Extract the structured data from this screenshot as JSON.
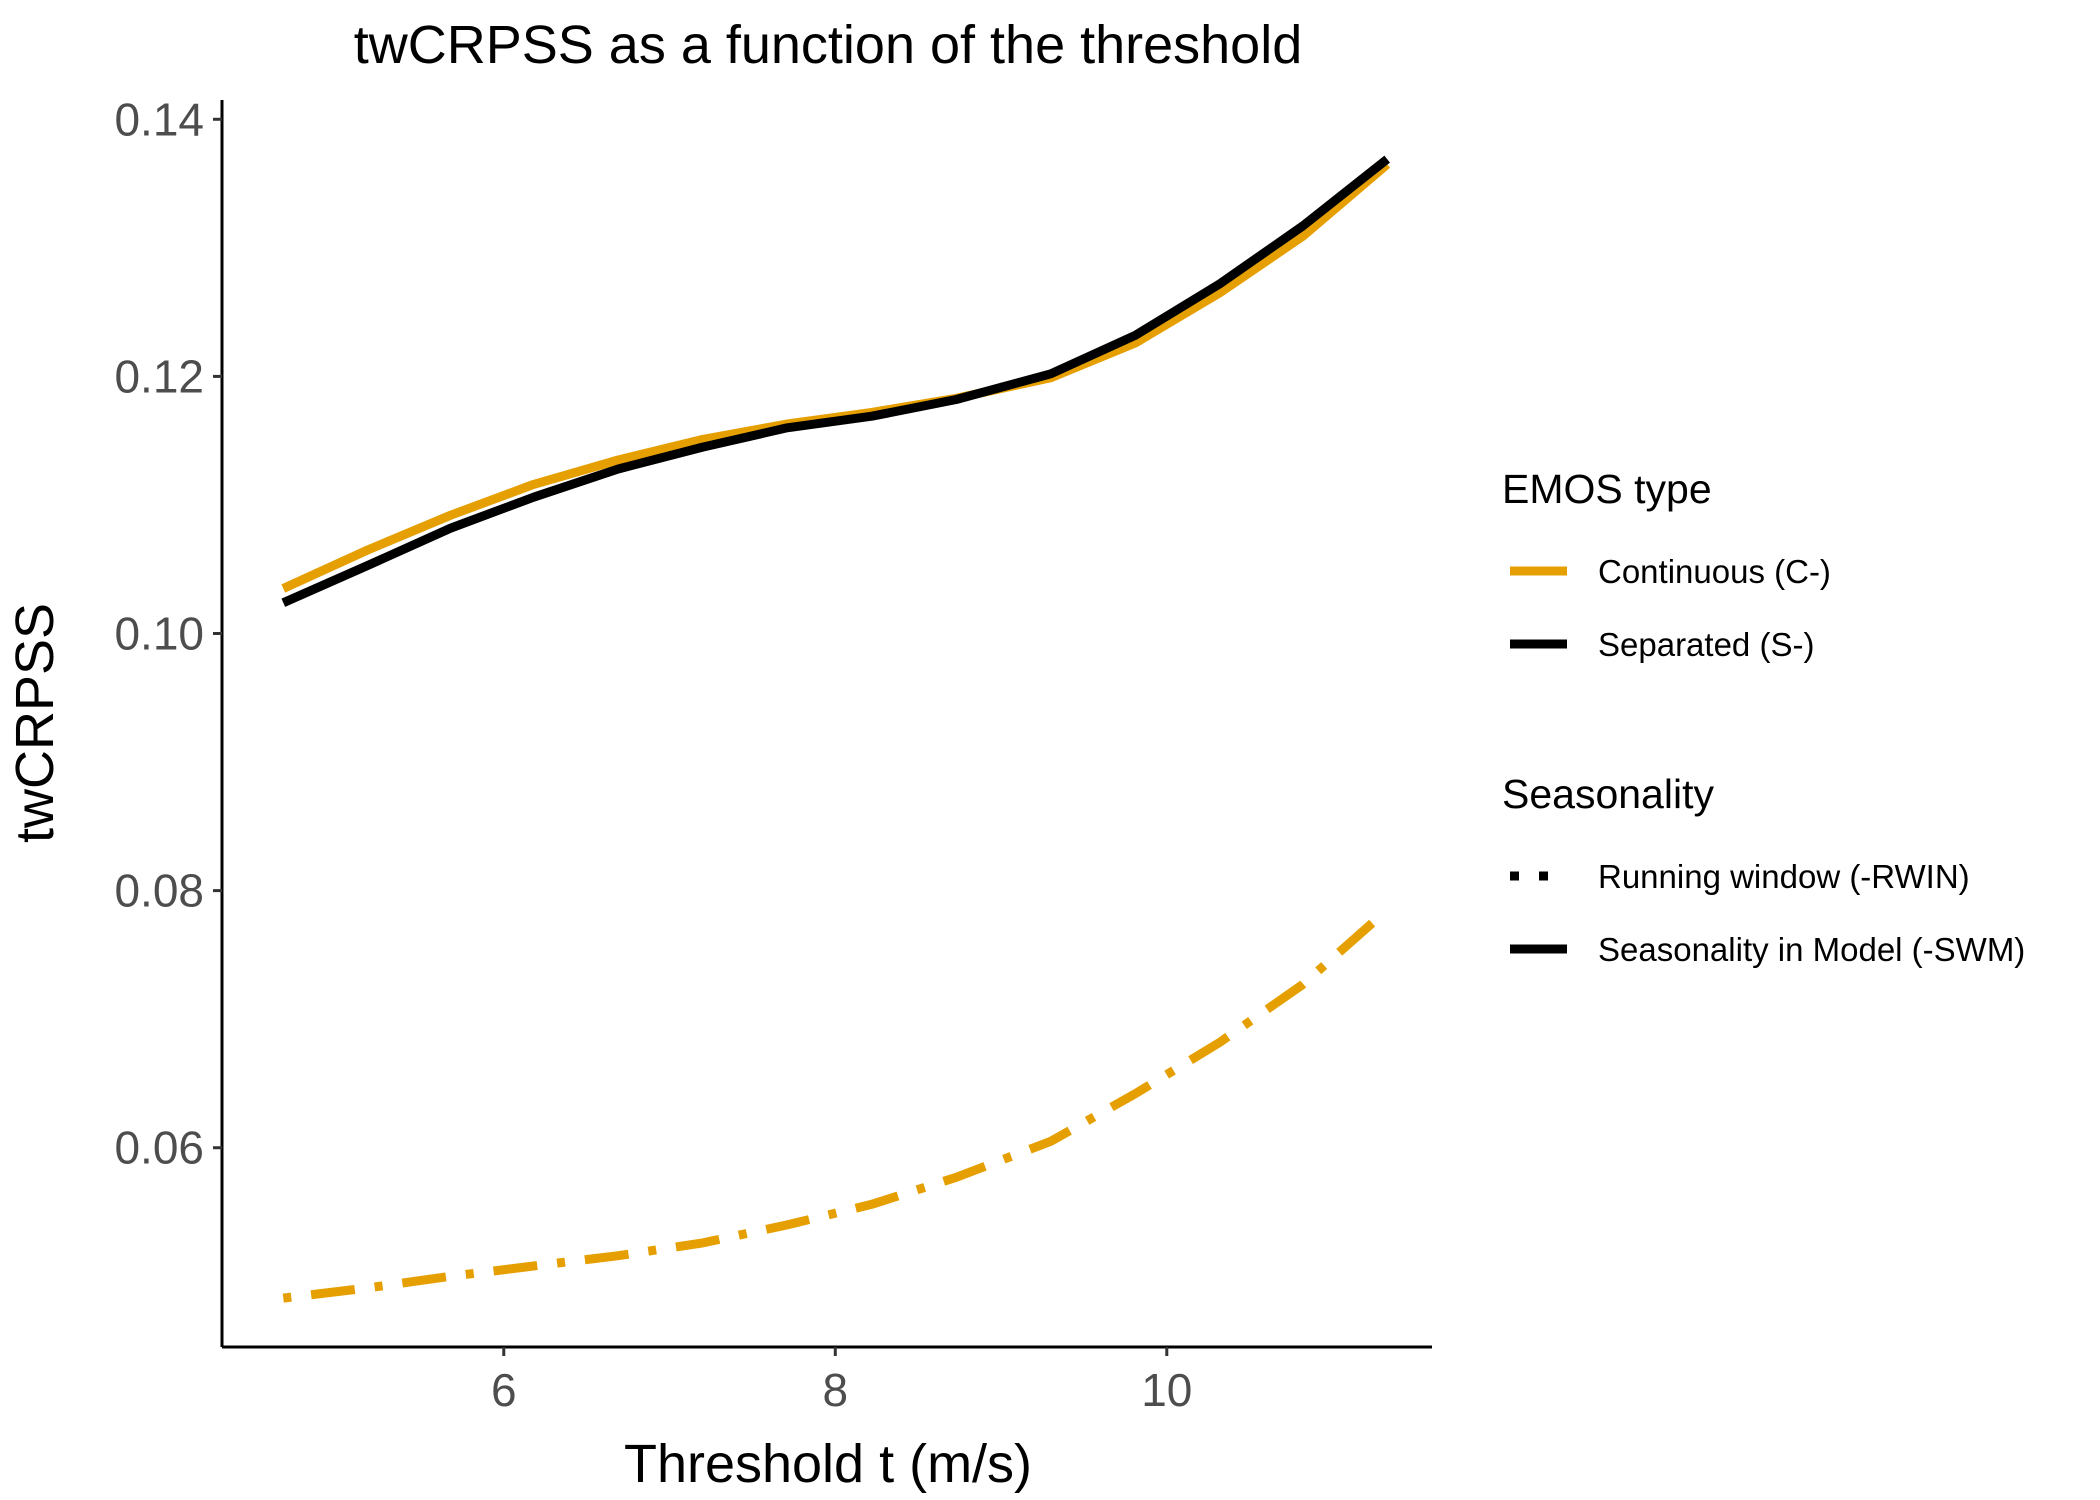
{
  "chart_data": {
    "type": "line",
    "title": "twCRPSS as a function of the threshold",
    "xlabel": "Threshold t (m/s)",
    "ylabel": "twCRPSS",
    "xlim": [
      4.3,
      11.6
    ],
    "ylim": [
      0.0445,
      0.1415
    ],
    "x_ticks": [
      6,
      8,
      10
    ],
    "x_tick_labels": [
      "6",
      "8",
      "10"
    ],
    "y_ticks": [
      0.06,
      0.08,
      0.1,
      0.12,
      0.14
    ],
    "y_tick_labels": [
      "0.06",
      "0.08",
      "0.10",
      "0.12",
      "0.14"
    ],
    "grid": false,
    "legend_position": "right",
    "colors": {
      "continuous": "#E69F00",
      "separated": "#000000"
    },
    "legend": [
      {
        "title": "EMOS type",
        "entries": [
          {
            "label": "Continuous (C-)",
            "color": "#E69F00",
            "linetype": "solid"
          },
          {
            "label": "Separated (S-)",
            "color": "#000000",
            "linetype": "solid"
          }
        ]
      },
      {
        "title": "Seasonality",
        "entries": [
          {
            "label": "Running window (-RWIN)",
            "color": "#000000",
            "linetype": "dotted"
          },
          {
            "label": "Seasonality in Model (-SWM)",
            "color": "#000000",
            "linetype": "solid"
          }
        ]
      }
    ],
    "x": [
      4.67,
      5.18,
      5.68,
      6.18,
      6.69,
      7.2,
      7.71,
      8.22,
      8.73,
      9.3,
      9.81,
      10.32,
      10.82,
      11.33
    ],
    "series": [
      {
        "name": "C-SWM",
        "color": "#E69F00",
        "linetype": "solid",
        "values": [
          0.1035,
          0.1065,
          0.1092,
          0.1116,
          0.1135,
          0.1151,
          0.1163,
          0.1172,
          0.1183,
          0.1199,
          0.1226,
          0.1265,
          0.1309,
          0.1365
        ]
      },
      {
        "name": "S-SWM",
        "color": "#000000",
        "linetype": "solid",
        "values": [
          0.1024,
          0.1053,
          0.1082,
          0.1106,
          0.1128,
          0.1145,
          0.116,
          0.1169,
          0.1182,
          0.1202,
          0.1232,
          0.1272,
          0.1317,
          0.1369
        ]
      },
      {
        "name": "C-RWIN",
        "color": "#E69F00",
        "linetype": "dotdash",
        "values": [
          0.0483,
          0.0491,
          0.05,
          0.0508,
          0.0516,
          0.0526,
          0.054,
          0.0556,
          0.0577,
          0.0605,
          0.0642,
          0.0682,
          0.0727,
          0.0785
        ]
      }
    ]
  }
}
